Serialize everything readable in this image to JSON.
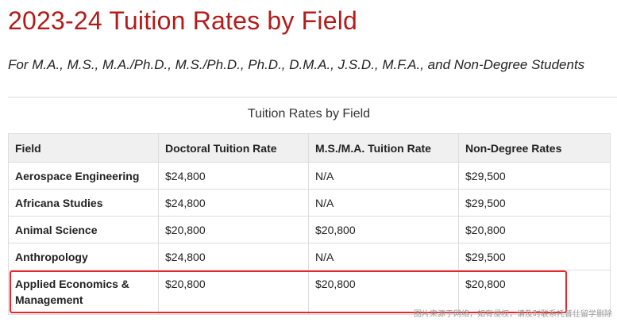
{
  "page": {
    "title": "2023-24 Tuition Rates by Field",
    "subtitle": "For M.A., M.S., M.A./Ph.D., M.S./Ph.D., Ph.D., D.M.A., J.S.D., M.F.A., and Non-Degree Students"
  },
  "table": {
    "caption": "Tuition Rates by Field",
    "headers": [
      "Field",
      "Doctoral Tuition Rate",
      "M.S./M.A. Tuition Rate",
      "Non-Degree Rates"
    ],
    "rows": [
      [
        "Aerospace Engineering",
        "$24,800",
        "N/A",
        "$29,500"
      ],
      [
        "Africana Studies",
        "$24,800",
        "N/A",
        "$29,500"
      ],
      [
        "Animal Science",
        "$20,800",
        "$20,800",
        "$20,800"
      ],
      [
        "Anthropology",
        "$24,800",
        "N/A",
        "$29,500"
      ],
      [
        "Applied Economics & Management",
        "$20,800",
        "$20,800",
        "$20,800"
      ]
    ]
  },
  "watermark": "图片来源于网络，如有侵权，请及时联系托普仕留学删除",
  "colors": {
    "title": "#b31b1b",
    "highlight_border": "#e8262b",
    "header_bg": "#f0f0f0"
  }
}
